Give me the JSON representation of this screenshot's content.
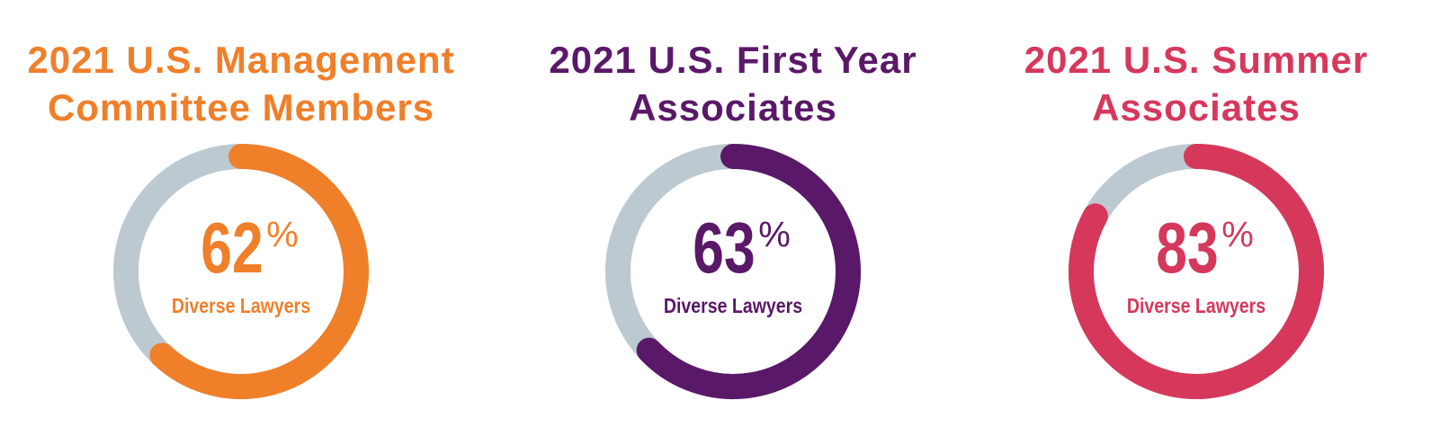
{
  "chart_data": [
    {
      "type": "donut",
      "title": [
        "2021 U.S. Management",
        "Committee Members"
      ],
      "values": [
        62
      ],
      "unit": "%",
      "label": "Diverse Lawyers",
      "color": "#f07f2a",
      "track_color": "#bdc9d0",
      "ylim": [
        0,
        100
      ]
    },
    {
      "type": "donut",
      "title": [
        "2021 U.S. First Year",
        "Associates"
      ],
      "values": [
        63
      ],
      "unit": "%",
      "label": "Diverse Lawyers",
      "color": "#5a1868",
      "track_color": "#bdc9d0",
      "ylim": [
        0,
        100
      ]
    },
    {
      "type": "donut",
      "title": [
        "2021 U.S. Summer",
        "Associates"
      ],
      "values": [
        83
      ],
      "unit": "%",
      "label": "Diverse Lawyers",
      "color": "#d6385c",
      "track_color": "#bdc9d0",
      "ylim": [
        0,
        100
      ]
    }
  ]
}
